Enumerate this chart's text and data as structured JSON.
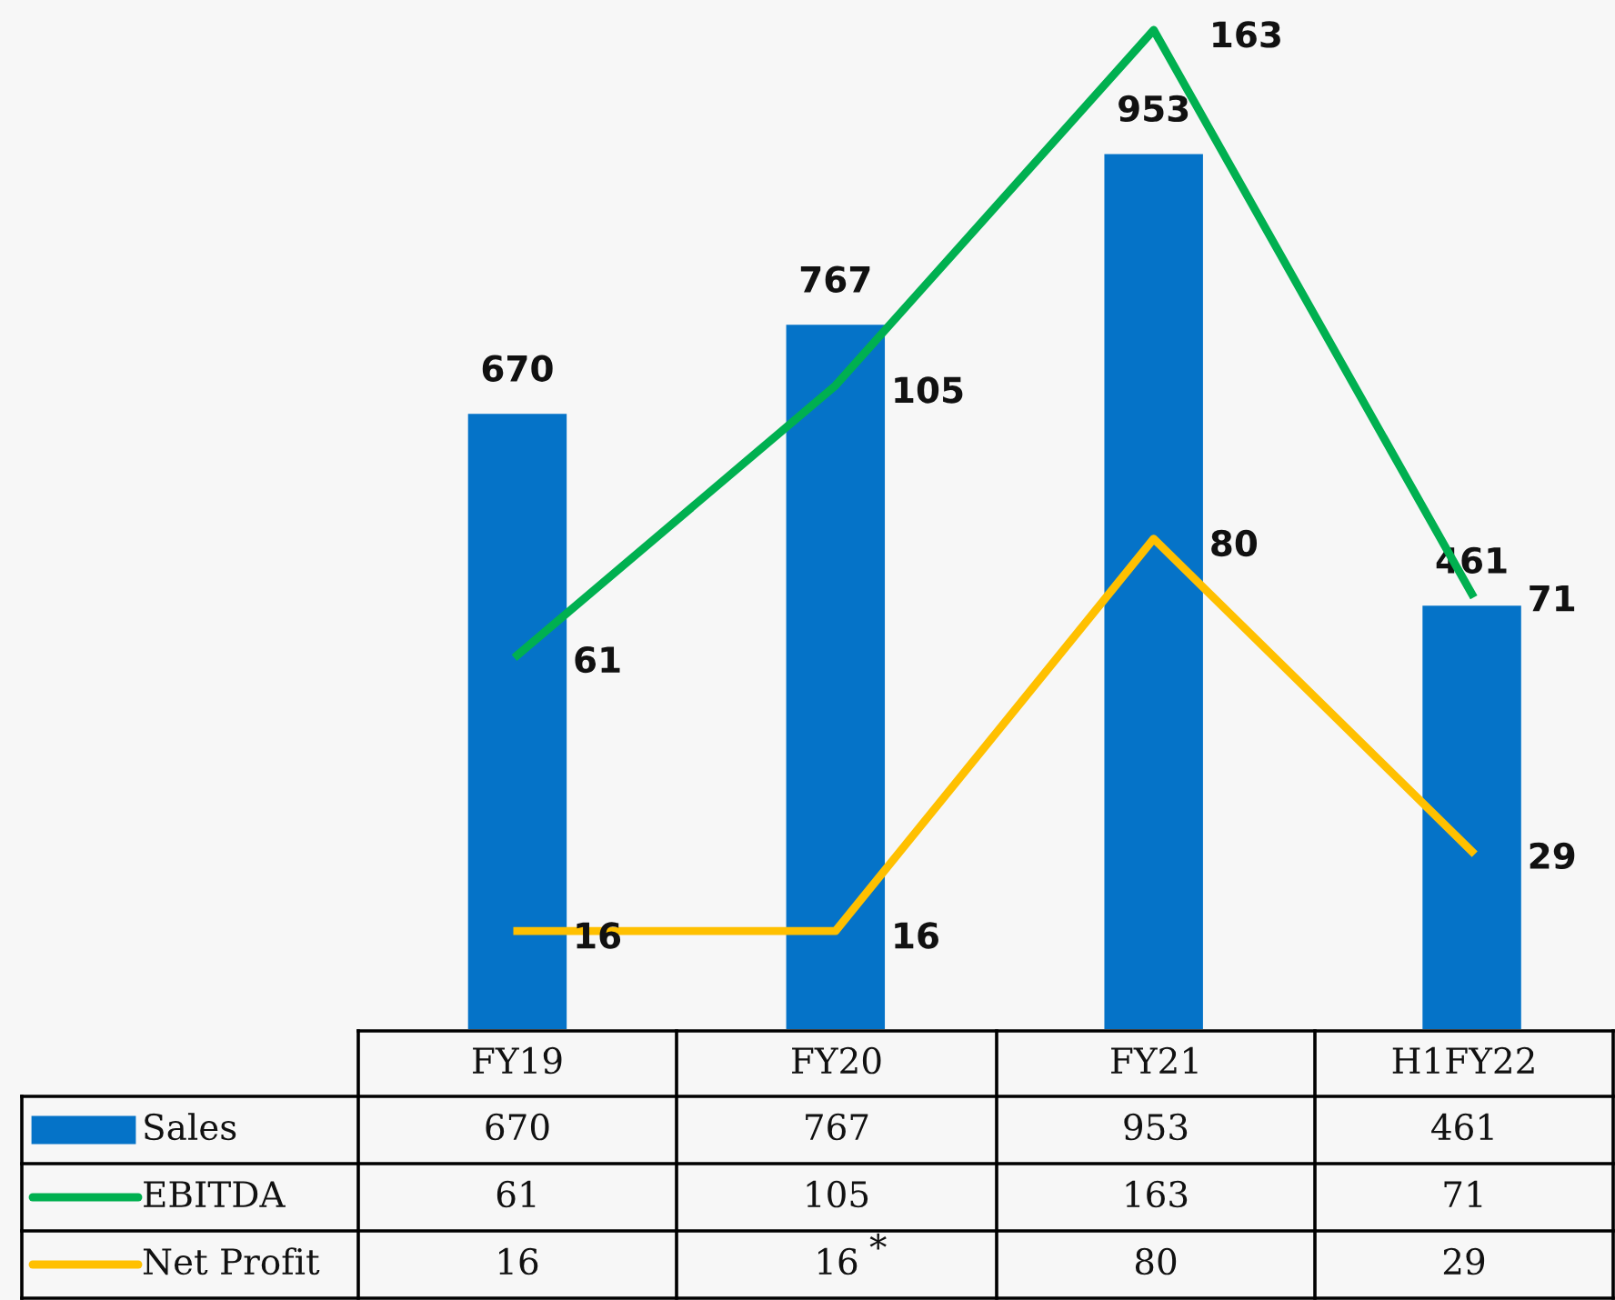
{
  "chart_data": {
    "type": "bar",
    "categories": [
      "FY19",
      "FY20",
      "FY21",
      "H1FY22"
    ],
    "series": [
      {
        "name": "Sales",
        "color": "#0573c8",
        "values": [
          670,
          767,
          953,
          461
        ]
      },
      {
        "name": "EBITDA",
        "type": "line",
        "axis": "y2",
        "color": "#00b050",
        "values": [
          61,
          105,
          163,
          71
        ]
      },
      {
        "name": "Net Profit",
        "type": "line",
        "axis": "y2",
        "color": "#ffc000",
        "values": [
          16,
          16,
          80,
          29
        ]
      }
    ],
    "data_labels": true,
    "tick_labels": false,
    "grid": false,
    "legend": "bottom",
    "marker": "none",
    "line_style": "solid",
    "annotations": [
      {
        "text": "670",
        "x": "FY19",
        "y": 670
      },
      {
        "text": "767",
        "x": "FY20",
        "y": 767
      },
      {
        "text": "953",
        "x": "FY21",
        "y": 953
      },
      {
        "text": "461",
        "x": "H1FY22",
        "y": 461
      },
      "61",
      "105",
      "163",
      "71",
      "16",
      "16",
      "80",
      "29",
      "*"
    ]
  }
}
